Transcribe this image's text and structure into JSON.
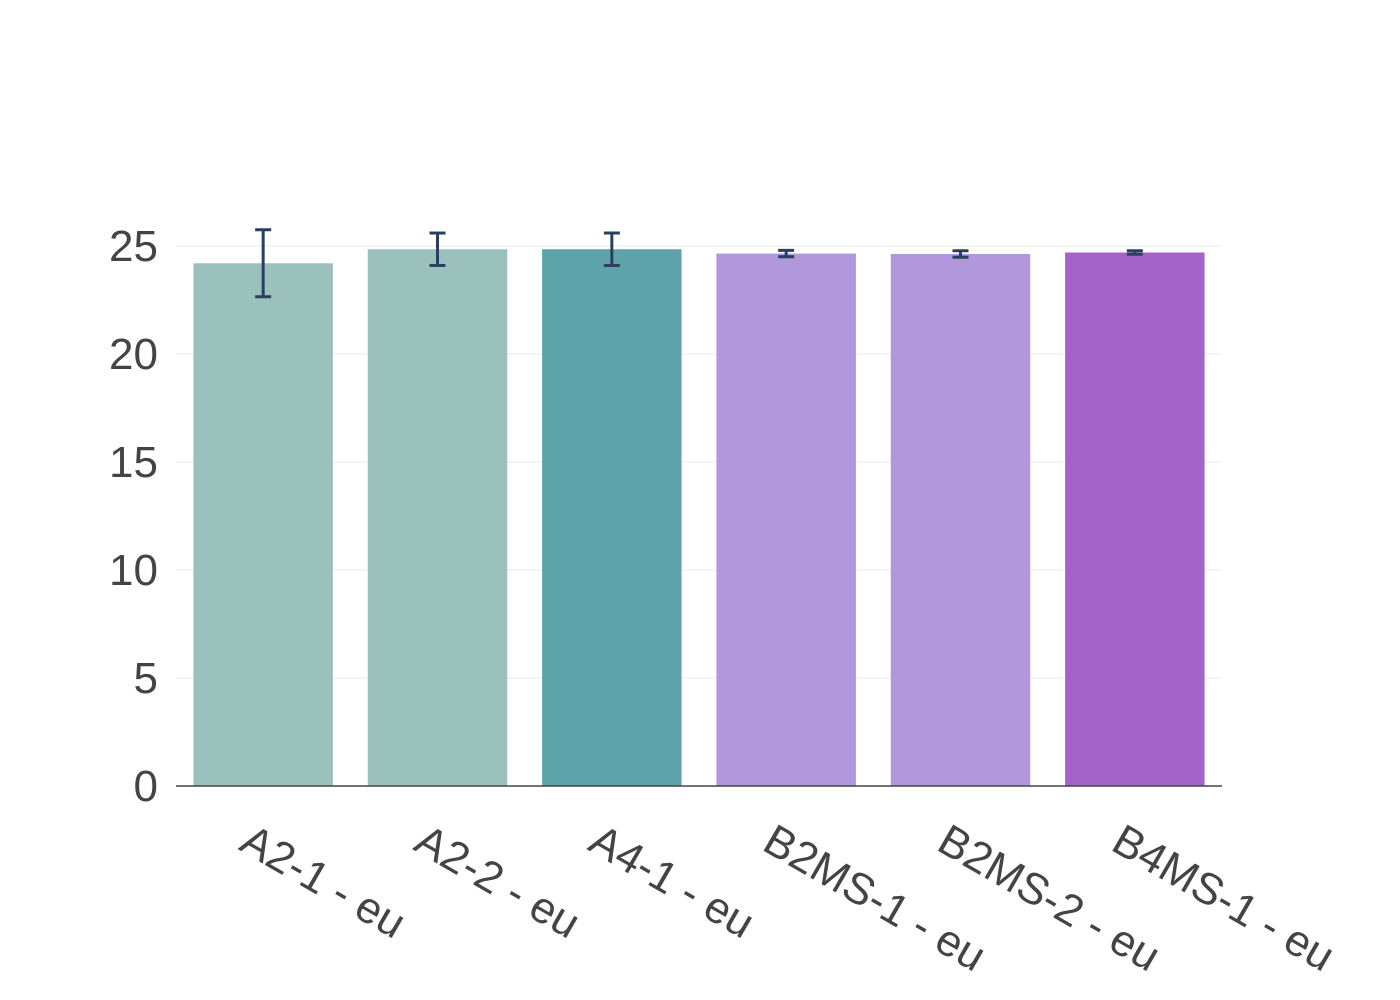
{
  "chart_data": {
    "type": "bar",
    "categories": [
      "A2-1 - eu",
      "A2-2 - eu",
      "A4-1 - eu",
      "B2MS-1 - eu",
      "B2MS-2 - eu",
      "B4MS-1 - eu"
    ],
    "values": [
      24.2,
      24.85,
      24.85,
      24.65,
      24.63,
      24.7
    ],
    "error": [
      1.55,
      0.75,
      0.75,
      0.15,
      0.15,
      0.08
    ],
    "colors": [
      "#9bc1bc",
      "#9bc1bc",
      "#5ea3a9",
      "#b197dc",
      "#b197dc",
      "#a463c9"
    ],
    "error_color": "#2a3f5f",
    "grid_color": "#ebebeb",
    "axis_color": "#444444",
    "ylim": [
      0,
      25.6
    ],
    "yticks": [
      0,
      5,
      10,
      15,
      20,
      25
    ],
    "grid": true,
    "xlabel": "",
    "ylabel": "",
    "title": ""
  }
}
